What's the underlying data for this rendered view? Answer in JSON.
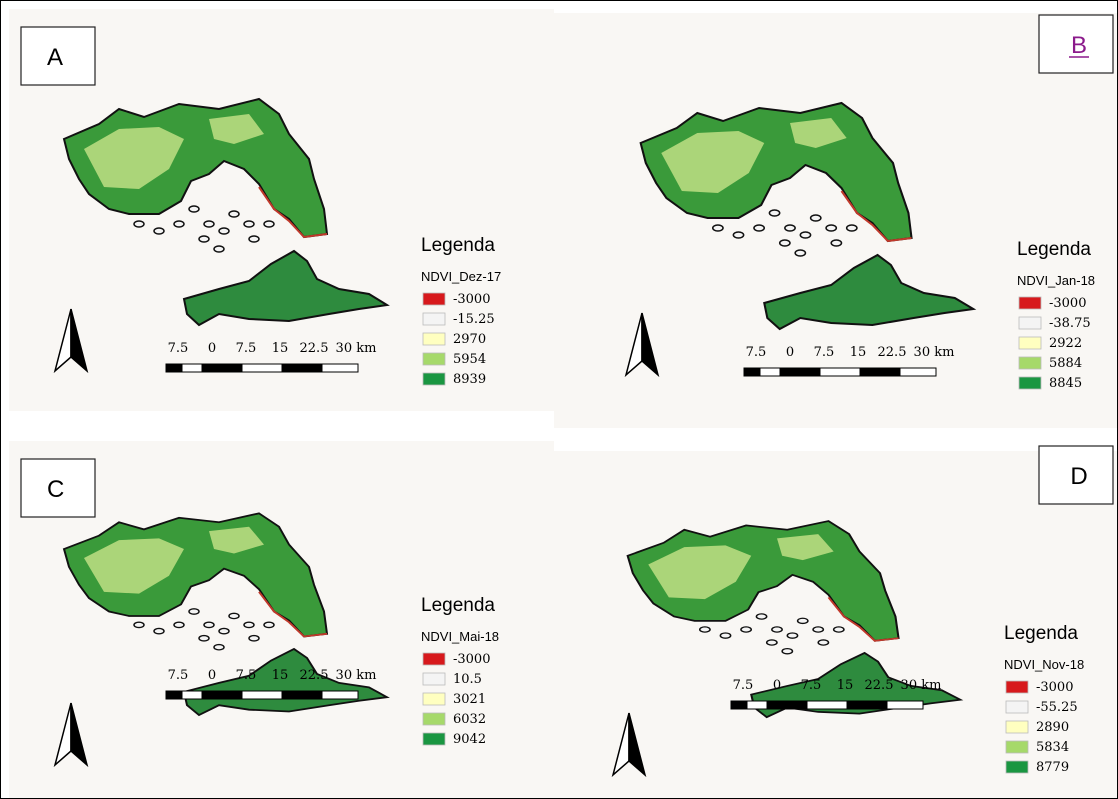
{
  "panels": [
    {
      "label": "A",
      "legend": {
        "heading": "Legenda",
        "title": "NDVI_Dez-17",
        "items": [
          "-3000",
          "-15.25",
          "2970",
          "5954",
          "8939"
        ]
      },
      "scale": [
        "7.5",
        "0",
        "7.5",
        "15",
        "22.5",
        "30 km"
      ]
    },
    {
      "label": "B",
      "legend": {
        "heading": "Legenda",
        "title": "NDVI_Jan-18",
        "items": [
          "-3000",
          "-38.75",
          "2922",
          "5884",
          "8845"
        ]
      },
      "scale": [
        "7.5",
        "0",
        "7.5",
        "15",
        "22.5",
        "30 km"
      ]
    },
    {
      "label": "C",
      "legend": {
        "heading": "Legenda",
        "title": "NDVI_Mai-18",
        "items": [
          "-3000",
          "10.5",
          "3021",
          "6032",
          "9042"
        ]
      },
      "scale": [
        "7.5",
        "0",
        "7.5",
        "15",
        "22.5",
        "30 km"
      ]
    },
    {
      "label": "D",
      "legend": {
        "heading": "Legenda",
        "title": "NDVI_Nov-18",
        "items": [
          "-3000",
          "-55.25",
          "2890",
          "5834",
          "8779"
        ]
      },
      "scale": [
        "7.5",
        "0",
        "7.5",
        "15",
        "22.5",
        "30 km"
      ]
    }
  ]
}
